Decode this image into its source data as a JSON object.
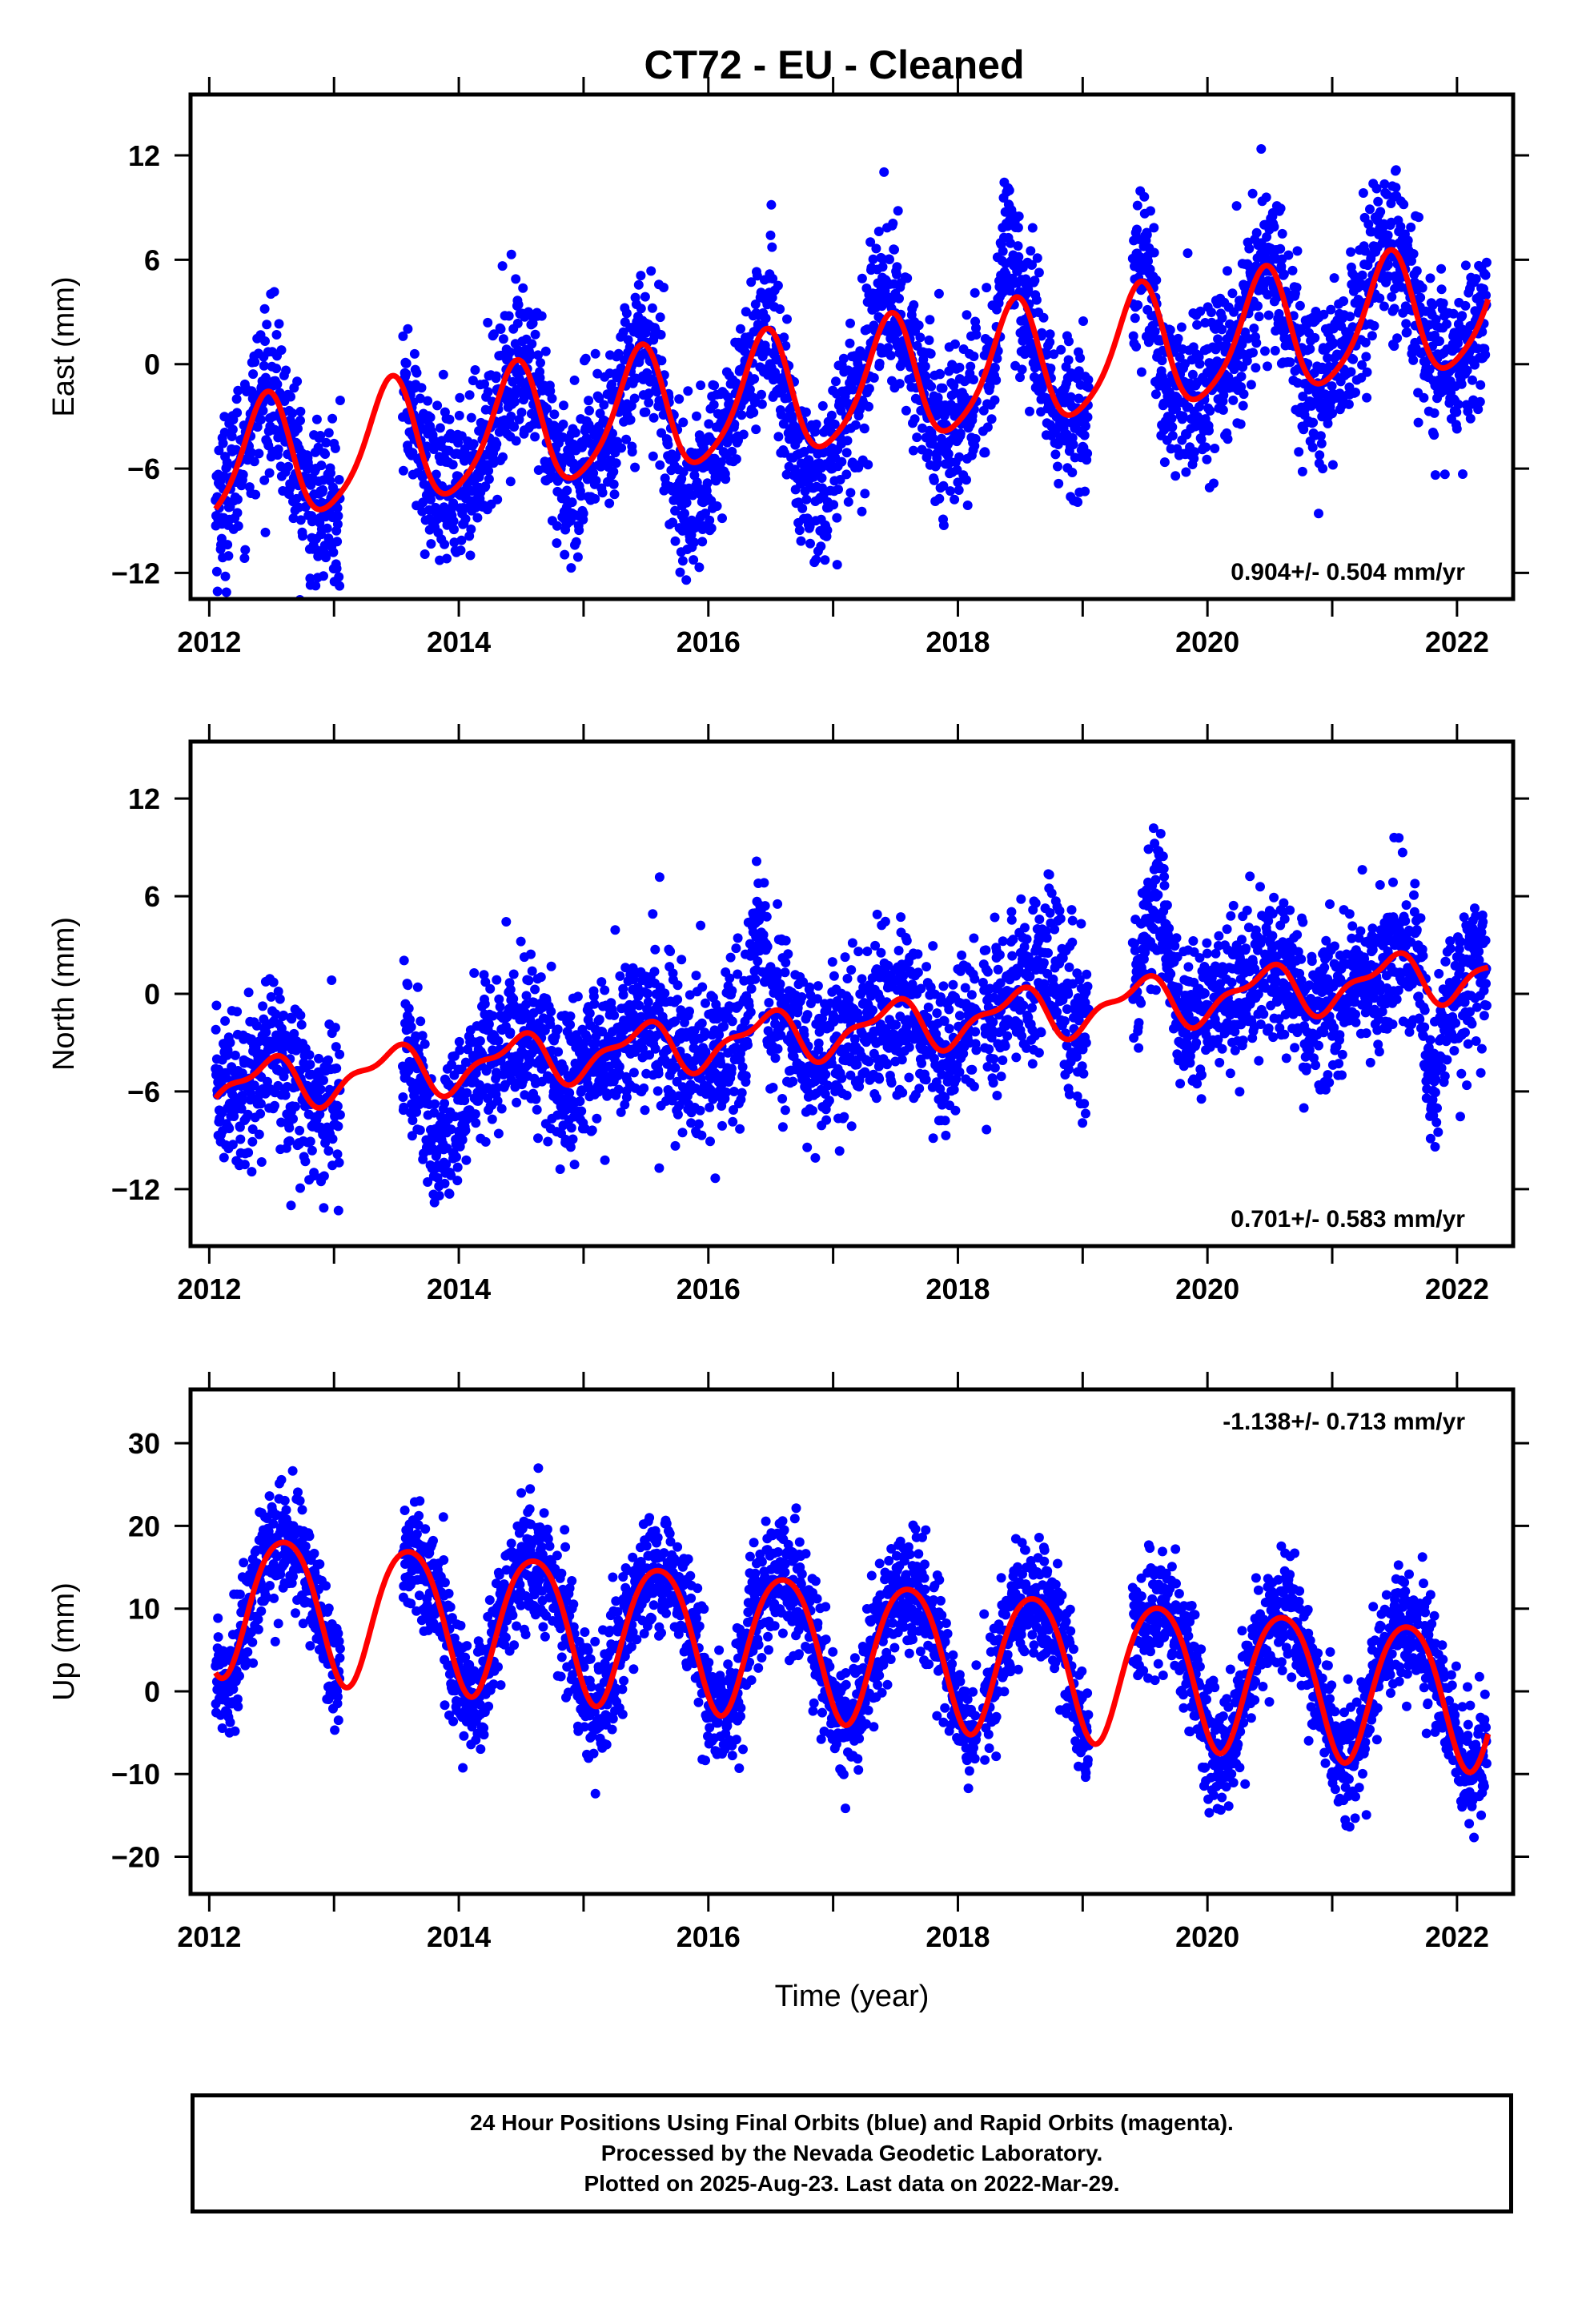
{
  "title": "CT72  - EU - Cleaned",
  "colors": {
    "points": "#0000ff",
    "fit": "#ff0000",
    "frame": "#000000"
  },
  "chart_data": [
    {
      "type": "scatter",
      "component": "East",
      "ylabel": "East (mm)",
      "xlabel": "",
      "xlim": [
        2011.85,
        2022.45
      ],
      "ylim": [
        -13.5,
        15.5
      ],
      "xticks": [
        "2012",
        "2014",
        "2016",
        "2018",
        "2020",
        "2022"
      ],
      "yticks": [
        "12",
        "6",
        "0",
        "-6",
        "-12"
      ],
      "rate_label": "0.904+/- 0.504 mm/yr",
      "rate_position": "bottom-right",
      "fit": {
        "trend": 0.904,
        "offset": -1.5,
        "annual_amp": 3.5,
        "annual_peak": 2012.45,
        "semi_amp": 0.6,
        "semi_peak": 2012.0
      },
      "scatter_sd": 2.3,
      "episodes": [
        {
          "start": 2015.6,
          "end": 2016.05,
          "shift": -2.5
        },
        {
          "start": 2016.5,
          "end": 2017.05,
          "shift": -3.0
        },
        {
          "start": 2017.25,
          "end": 2017.5,
          "shift": 2.0
        },
        {
          "start": 2018.3,
          "end": 2018.5,
          "shift": 4.0
        },
        {
          "start": 2019.55,
          "end": 2019.75,
          "shift": -3.0
        },
        {
          "start": 2021.1,
          "end": 2021.5,
          "shift": 1.5
        }
      ],
      "gaps": [
        [
          2013.05,
          2013.55
        ],
        [
          2018.15,
          2018.2
        ],
        [
          2019.05,
          2019.4
        ]
      ]
    },
    {
      "type": "scatter",
      "component": "North",
      "ylabel": "North (mm)",
      "xlabel": "",
      "xlim": [
        2011.85,
        2022.45
      ],
      "ylim": [
        -15.5,
        15.5
      ],
      "xticks": [
        "2012",
        "2014",
        "2016",
        "2018",
        "2020",
        "2022"
      ],
      "yticks": [
        "12",
        "6",
        "0",
        "-6",
        "-12"
      ],
      "rate_label": "0.701+/- 0.583 mm/yr",
      "rate_position": "bottom-right",
      "fit": {
        "trend": 0.701,
        "offset": -2.3,
        "annual_amp": 1.4,
        "annual_peak": 2012.45,
        "semi_amp": 0.6,
        "semi_peak": 2012.1
      },
      "scatter_sd": 2.4,
      "episodes": [
        {
          "start": 2013.6,
          "end": 2014.1,
          "shift": -3.5
        },
        {
          "start": 2016.3,
          "end": 2016.5,
          "shift": 6.0
        },
        {
          "start": 2018.6,
          "end": 2018.95,
          "shift": 3.5
        },
        {
          "start": 2019.45,
          "end": 2019.75,
          "shift": 5.0
        },
        {
          "start": 2021.7,
          "end": 2021.9,
          "shift": -5.0
        }
      ],
      "gaps": [
        [
          2013.05,
          2013.55
        ],
        [
          2018.15,
          2018.2
        ],
        [
          2019.05,
          2019.4
        ]
      ]
    },
    {
      "type": "scatter",
      "component": "Up",
      "ylabel": "Up (mm)",
      "xlabel": "Time (year)",
      "xlim": [
        2011.85,
        2022.45
      ],
      "ylim": [
        -24.5,
        36.5
      ],
      "xticks": [
        "2012",
        "2014",
        "2016",
        "2018",
        "2020",
        "2022"
      ],
      "yticks": [
        "30",
        "20",
        "10",
        "0",
        "-10",
        "-20"
      ],
      "rate_label": "-1.138+/- 0.713 mm/yr",
      "rate_position": "top-right",
      "fit": {
        "trend": -1.138,
        "offset": 5.5,
        "annual_amp": 8.5,
        "annual_peak": 2012.6,
        "semi_amp": 1.0,
        "semi_peak": 2012.35
      },
      "scatter_sd": 3.6,
      "episodes": [],
      "gaps": [
        [
          2013.05,
          2013.55
        ],
        [
          2018.15,
          2018.2
        ],
        [
          2019.05,
          2019.4
        ]
      ]
    }
  ],
  "footer": {
    "line1": "24 Hour Positions Using Final Orbits (blue) and Rapid Orbits (magenta).",
    "line2": "Processed by the Nevada Geodetic Laboratory.",
    "line3": "Plotted on 2025-Aug-23. Last data on 2022-Mar-29."
  }
}
